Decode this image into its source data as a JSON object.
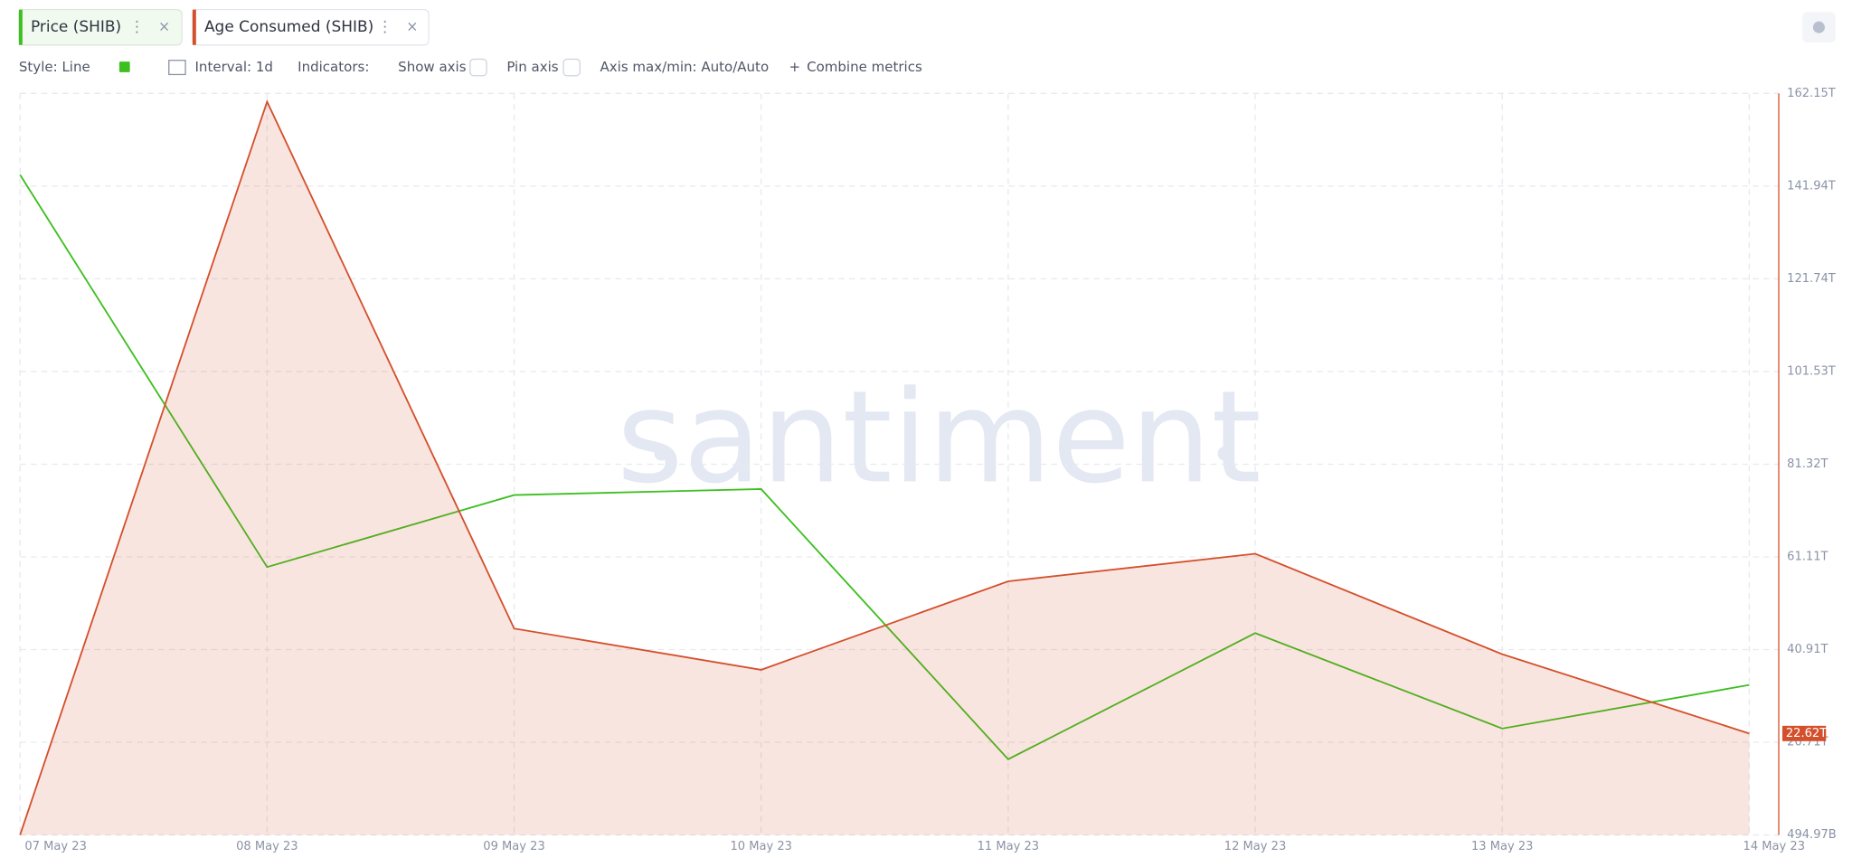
{
  "ui": {
    "metrics": [
      "Price (SHIB)",
      "Age Consumed (SHIB)"
    ],
    "toolbar": {
      "style": "Style: Line",
      "interval": "Interval: 1d",
      "indicators": "Indicators:",
      "show_axis": "Show axis",
      "pin_axis": "Pin axis",
      "axis_minmax": "Axis max/min: Auto/Auto",
      "combine": "Combine metrics"
    },
    "watermark": "santiment"
  },
  "chart_data": {
    "type": "line",
    "categories": [
      "07 May 23",
      "08 May 23",
      "09 May 23",
      "10 May 23",
      "11 May 23",
      "12 May 23",
      "13 May 23",
      "14 May 23"
    ],
    "series": [
      {
        "name": "Price (SHIB)",
        "color": "#3cbf1f",
        "area": false,
        "values": [
          144.4,
          58.9,
          74.6,
          75.9,
          17.0,
          44.5,
          23.7,
          33.2
        ]
      },
      {
        "name": "Age Consumed (SHIB)",
        "color": "#d4502c",
        "area": true,
        "values": [
          0.495,
          160.35,
          45.5,
          36.5,
          55.8,
          61.8,
          39.9,
          22.62
        ],
        "value_labels": [
          null,
          null,
          null,
          null,
          null,
          null,
          null,
          "22.62T"
        ]
      }
    ],
    "ylim": [
      0.49497,
      162.15
    ],
    "yticks": [
      {
        "value": 0.49497,
        "label": "494.97B"
      },
      {
        "value": 20.71,
        "label": "20.71T"
      },
      {
        "value": 40.91,
        "label": "40.91T"
      },
      {
        "value": 61.11,
        "label": "61.11T"
      },
      {
        "value": 81.32,
        "label": "81.32T"
      },
      {
        "value": 101.53,
        "label": "101.53T"
      },
      {
        "value": 121.74,
        "label": "121.74T"
      },
      {
        "value": 141.94,
        "label": "141.94T"
      },
      {
        "value": 162.15,
        "label": "162.15T"
      }
    ],
    "axis_side": "right",
    "grid": true
  }
}
